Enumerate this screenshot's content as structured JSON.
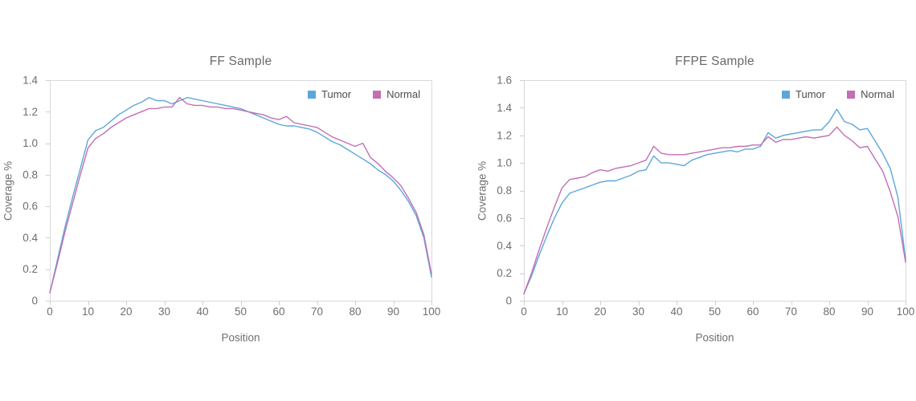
{
  "chart_data": [
    {
      "type": "line",
      "title": "FF Sample",
      "xlabel": "Position",
      "ylabel": "Coverage %",
      "xlim": [
        0,
        100
      ],
      "ylim": [
        0,
        1.4
      ],
      "x_ticks": [
        0,
        10,
        20,
        30,
        40,
        50,
        60,
        70,
        80,
        90,
        100
      ],
      "y_ticks": [
        "0",
        "0.2",
        "0.4",
        "0.6",
        "0.8",
        "1.0",
        "1.2",
        "1.4"
      ],
      "legend_position": "top-right-inside",
      "grid": false,
      "x": [
        0,
        2,
        4,
        6,
        8,
        10,
        12,
        14,
        16,
        18,
        20,
        22,
        24,
        26,
        28,
        30,
        32,
        34,
        36,
        38,
        40,
        42,
        44,
        46,
        48,
        50,
        52,
        54,
        56,
        58,
        60,
        62,
        64,
        66,
        68,
        70,
        72,
        74,
        76,
        78,
        80,
        82,
        84,
        86,
        88,
        90,
        92,
        94,
        96,
        98,
        100
      ],
      "series": [
        {
          "name": "Tumor",
          "color": "#5ba7dc",
          "values": [
            0.05,
            0.26,
            0.47,
            0.66,
            0.84,
            1.02,
            1.08,
            1.1,
            1.14,
            1.18,
            1.21,
            1.24,
            1.26,
            1.29,
            1.27,
            1.27,
            1.25,
            1.27,
            1.29,
            1.28,
            1.27,
            1.26,
            1.25,
            1.24,
            1.23,
            1.22,
            1.2,
            1.18,
            1.16,
            1.14,
            1.12,
            1.11,
            1.11,
            1.1,
            1.09,
            1.07,
            1.04,
            1.01,
            0.99,
            0.96,
            0.93,
            0.9,
            0.87,
            0.83,
            0.8,
            0.76,
            0.7,
            0.63,
            0.54,
            0.4,
            0.15
          ]
        },
        {
          "name": "Normal",
          "color": "#c26fb5",
          "values": [
            0.05,
            0.24,
            0.44,
            0.62,
            0.8,
            0.97,
            1.03,
            1.06,
            1.1,
            1.13,
            1.16,
            1.18,
            1.2,
            1.22,
            1.22,
            1.23,
            1.23,
            1.29,
            1.25,
            1.24,
            1.24,
            1.23,
            1.23,
            1.22,
            1.22,
            1.21,
            1.2,
            1.19,
            1.18,
            1.16,
            1.15,
            1.17,
            1.13,
            1.12,
            1.11,
            1.1,
            1.07,
            1.04,
            1.02,
            1.0,
            0.98,
            1.0,
            0.91,
            0.87,
            0.82,
            0.78,
            0.73,
            0.65,
            0.56,
            0.42,
            0.17
          ]
        }
      ]
    },
    {
      "type": "line",
      "title": "FFPE Sample",
      "xlabel": "Position",
      "ylabel": "Coverage %",
      "xlim": [
        0,
        100
      ],
      "ylim": [
        0,
        1.6
      ],
      "x_ticks": [
        0,
        10,
        20,
        30,
        40,
        50,
        60,
        70,
        80,
        90,
        100
      ],
      "y_ticks": [
        "0",
        "0.2",
        "0.4",
        "0.6",
        "0.8",
        "1.0",
        "1.2",
        "1.4",
        "1.6"
      ],
      "legend_position": "top-right-inside",
      "grid": false,
      "x": [
        0,
        2,
        4,
        6,
        8,
        10,
        12,
        14,
        16,
        18,
        20,
        22,
        24,
        26,
        28,
        30,
        32,
        34,
        36,
        38,
        40,
        42,
        44,
        46,
        48,
        50,
        52,
        54,
        56,
        58,
        60,
        62,
        64,
        66,
        68,
        70,
        72,
        74,
        76,
        78,
        80,
        82,
        84,
        86,
        88,
        90,
        92,
        94,
        96,
        98,
        100
      ],
      "series": [
        {
          "name": "Tumor",
          "color": "#5ba7dc",
          "values": [
            0.05,
            0.18,
            0.33,
            0.47,
            0.6,
            0.71,
            0.78,
            0.8,
            0.82,
            0.84,
            0.86,
            0.87,
            0.87,
            0.89,
            0.91,
            0.94,
            0.95,
            1.05,
            1.0,
            1.0,
            0.99,
            0.98,
            1.02,
            1.04,
            1.06,
            1.07,
            1.08,
            1.09,
            1.08,
            1.1,
            1.1,
            1.12,
            1.22,
            1.18,
            1.2,
            1.21,
            1.22,
            1.23,
            1.24,
            1.24,
            1.3,
            1.39,
            1.3,
            1.28,
            1.24,
            1.25,
            1.16,
            1.07,
            0.96,
            0.75,
            0.3
          ]
        },
        {
          "name": "Normal",
          "color": "#c26fb5",
          "values": [
            0.05,
            0.2,
            0.37,
            0.53,
            0.68,
            0.82,
            0.88,
            0.89,
            0.9,
            0.93,
            0.95,
            0.94,
            0.96,
            0.97,
            0.98,
            1.0,
            1.02,
            1.12,
            1.07,
            1.06,
            1.06,
            1.06,
            1.07,
            1.08,
            1.09,
            1.1,
            1.11,
            1.11,
            1.12,
            1.12,
            1.13,
            1.13,
            1.19,
            1.15,
            1.17,
            1.17,
            1.18,
            1.19,
            1.18,
            1.19,
            1.2,
            1.26,
            1.2,
            1.16,
            1.11,
            1.12,
            1.03,
            0.94,
            0.79,
            0.61,
            0.28
          ]
        }
      ]
    }
  ]
}
